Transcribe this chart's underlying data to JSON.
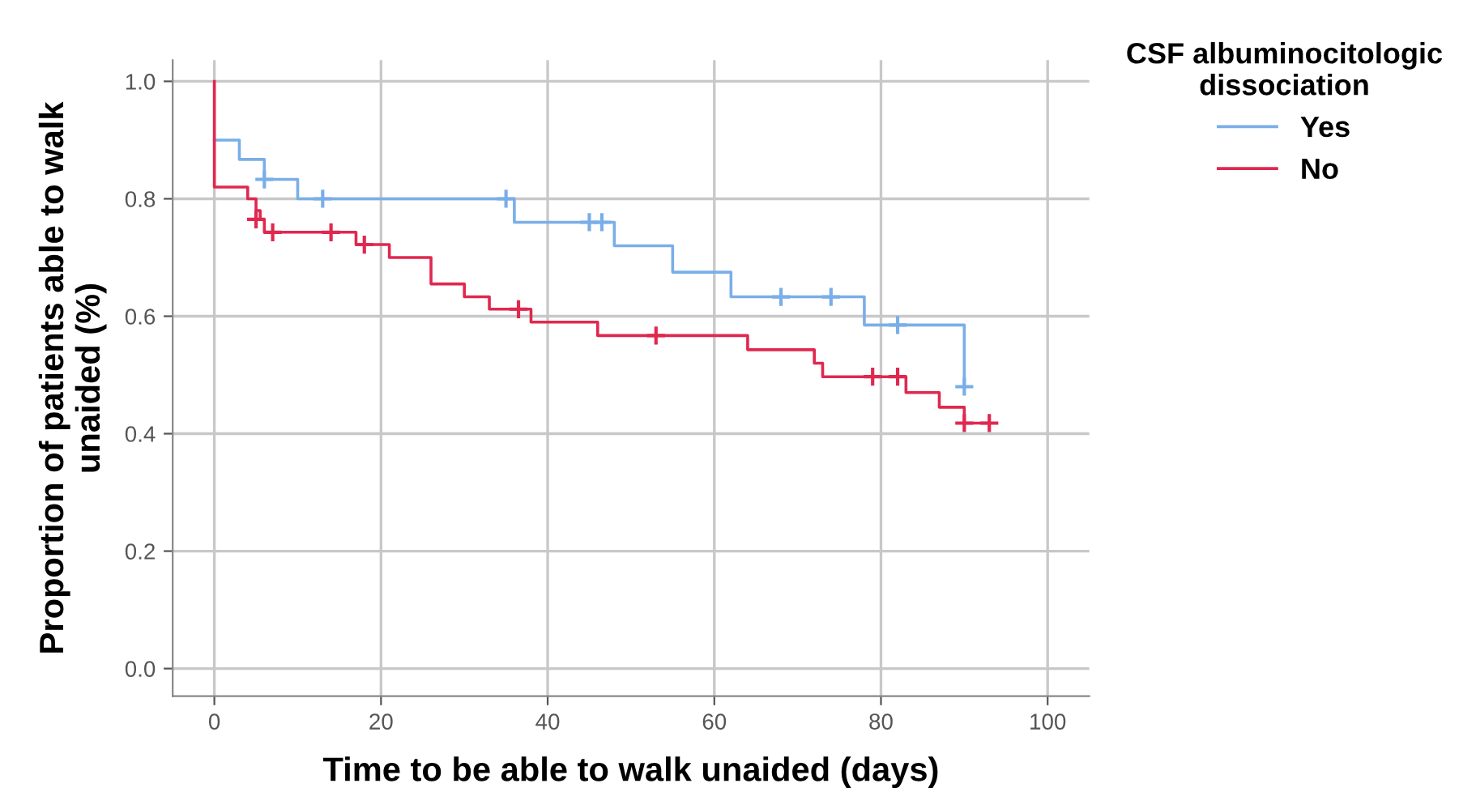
{
  "chart_data": {
    "type": "step",
    "xlabel": "Time to be able to walk unaided (days)",
    "ylabel": "Proportion of patients able to walk\nunaided (%)",
    "legend_title": "CSF albuminocitologic\ndissociation",
    "legend": "right",
    "grid": true,
    "xlim": [
      -5,
      105
    ],
    "xticks": [
      0,
      20,
      40,
      60,
      80,
      100
    ],
    "ylim": [
      -0.047,
      1.036
    ],
    "yticks": [
      {
        "value": 0,
        "label": "0.0"
      },
      {
        "value": 0.2,
        "label": "0.2"
      },
      {
        "value": 0.4,
        "label": "0.4"
      },
      {
        "value": 0.6,
        "label": "0.6"
      },
      {
        "value": 0.8,
        "label": "0.8"
      },
      {
        "value": 1.0,
        "label": "1.0"
      }
    ],
    "series": [
      {
        "name": "Yes",
        "color": "#7aaee8",
        "x": [
          0,
          3,
          6,
          10,
          36,
          48,
          55,
          62,
          78,
          90
        ],
        "values": [
          0.9,
          0.867,
          0.833,
          0.8,
          0.76,
          0.72,
          0.675,
          0.633,
          0.585,
          0.48
        ]
      },
      {
        "name": "No",
        "color": "#e0284f",
        "x": [
          0,
          0,
          4,
          5,
          5.5,
          6,
          17,
          21,
          26,
          30,
          33,
          38,
          46,
          64,
          72,
          73,
          83,
          87,
          90,
          93
        ],
        "values": [
          1.0,
          0.82,
          0.8,
          0.78,
          0.765,
          0.743,
          0.722,
          0.7,
          0.655,
          0.633,
          0.612,
          0.59,
          0.567,
          0.543,
          0.52,
          0.497,
          0.47,
          0.445,
          0.418,
          0.418
        ]
      },
      {
        "color": "#7aaee8",
        "type": "scatter",
        "marker": "cross",
        "x": [
          6,
          13,
          35,
          45,
          46.5,
          68,
          74,
          82,
          90
        ],
        "values": [
          0.833,
          0.8,
          0.8,
          0.76,
          0.76,
          0.633,
          0.633,
          0.585,
          0.48
        ]
      },
      {
        "color": "#e0284f",
        "type": "scatter",
        "marker": "cross",
        "x": [
          5,
          7,
          14,
          18,
          36.5,
          53,
          79,
          82,
          90,
          93
        ],
        "values": [
          0.765,
          0.743,
          0.743,
          0.722,
          0.612,
          0.567,
          0.497,
          0.497,
          0.418,
          0.418
        ]
      }
    ]
  }
}
